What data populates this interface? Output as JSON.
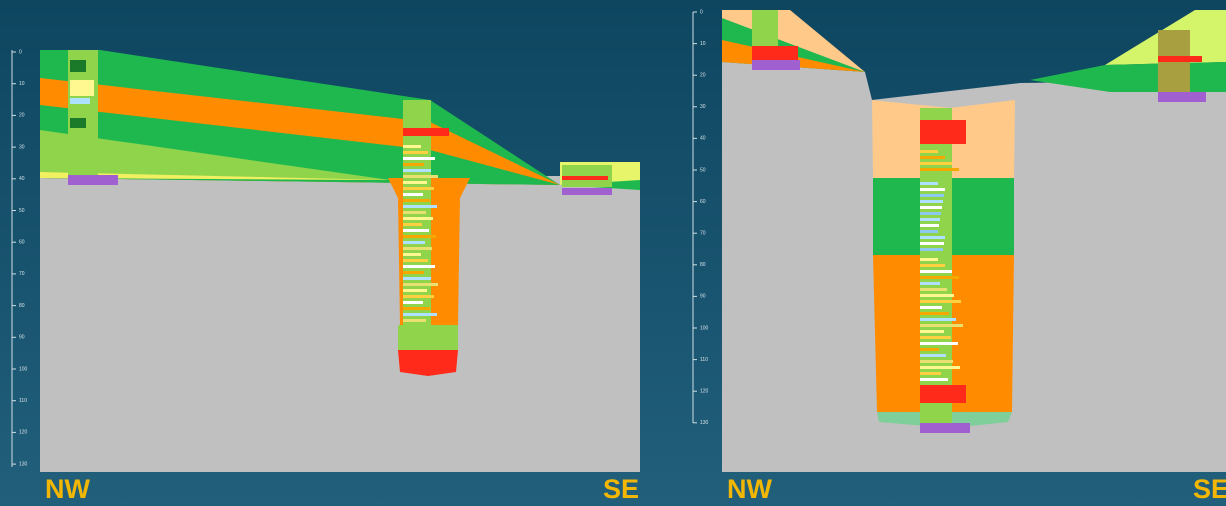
{
  "panels": [
    {
      "depth_labels": [
        "0",
        "10",
        "20",
        "30",
        "40",
        "50",
        "60",
        "70",
        "80",
        "90",
        "100",
        "110",
        "120",
        "130"
      ],
      "left_label": "NW",
      "right_label": "SE"
    },
    {
      "depth_labels": [
        "0",
        "10",
        "20",
        "30",
        "40",
        "50",
        "60",
        "70",
        "80",
        "90",
        "100",
        "110",
        "120",
        "130"
      ],
      "left_label": "NW",
      "right_label": "SE"
    }
  ]
}
